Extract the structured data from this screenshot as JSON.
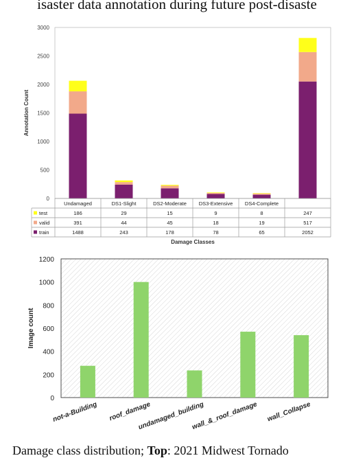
{
  "header_text": "isaster data annotation during future post-disaste",
  "caption": {
    "prefix": "Damage class distribution; ",
    "bold": "Top",
    "suffix": ": 2021 Midwest Tornado"
  },
  "chart_data": [
    {
      "type": "bar",
      "stacked": true,
      "categories": [
        "Undamaged",
        "DS1-Slight",
        "DS2-Moderate",
        "DS3-Extensive",
        "DS4-Complete",
        ""
      ],
      "series": [
        {
          "name": "train",
          "color": "#7b1f6e",
          "values": [
            1488,
            243,
            178,
            78,
            65,
            2052
          ]
        },
        {
          "name": "valid",
          "color": "#f2a98a",
          "values": [
            391,
            44,
            45,
            18,
            19,
            517
          ]
        },
        {
          "name": "test",
          "color": "#ffff1a",
          "values": [
            186,
            29,
            15,
            9,
            8,
            247
          ]
        }
      ],
      "table_rows": [
        "test",
        "valid",
        "train"
      ],
      "xlabel": "Damage Classes",
      "ylabel": "Annotation Count",
      "ylim": [
        0,
        3000
      ],
      "yticks": [
        0,
        500,
        1000,
        1500,
        2000,
        2500,
        3000
      ],
      "grid": false,
      "legend": "data-table"
    },
    {
      "type": "bar",
      "categories": [
        "not-a-Building",
        "roof_damage",
        "undamaged_building",
        "wall_&_roof_damage",
        "wall_Collapse"
      ],
      "x_positions": [
        0,
        1,
        2,
        3,
        4
      ],
      "values": [
        275,
        1000,
        235,
        570,
        540
      ],
      "color": "#8fd46b",
      "ylabel": "Image count",
      "xlabel": "",
      "ylim": [
        0,
        1200
      ],
      "yticks": [
        0,
        200,
        400,
        600,
        800,
        1000,
        1200
      ],
      "background": "hatched",
      "grid": false
    }
  ]
}
